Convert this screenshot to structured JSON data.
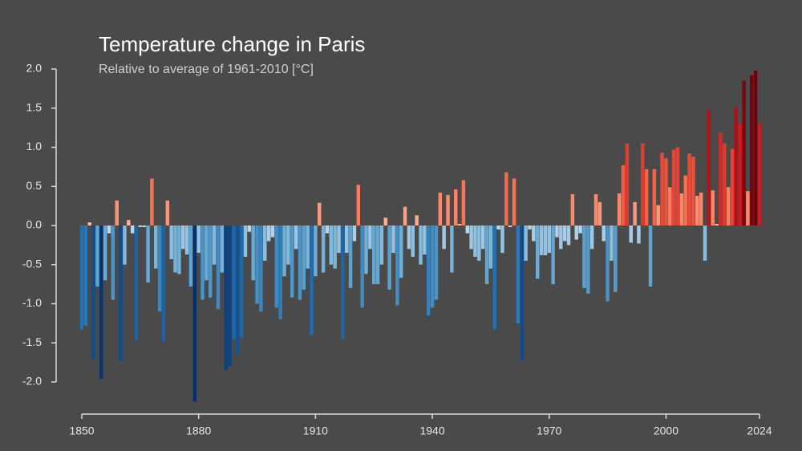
{
  "chart_data": {
    "type": "bar",
    "title": "Temperature change in Paris",
    "subtitle": "Relative to average of 1961-2010  [°C]",
    "x": [
      1850,
      1851,
      1852,
      1853,
      1854,
      1855,
      1856,
      1857,
      1858,
      1859,
      1860,
      1861,
      1862,
      1863,
      1864,
      1865,
      1866,
      1867,
      1868,
      1869,
      1870,
      1871,
      1872,
      1873,
      1874,
      1875,
      1876,
      1877,
      1878,
      1879,
      1880,
      1881,
      1882,
      1883,
      1884,
      1885,
      1886,
      1887,
      1888,
      1889,
      1890,
      1891,
      1892,
      1893,
      1894,
      1895,
      1896,
      1897,
      1898,
      1899,
      1900,
      1901,
      1902,
      1903,
      1904,
      1905,
      1906,
      1907,
      1908,
      1909,
      1910,
      1911,
      1912,
      1913,
      1914,
      1915,
      1916,
      1917,
      1918,
      1919,
      1920,
      1921,
      1922,
      1923,
      1924,
      1925,
      1926,
      1927,
      1928,
      1929,
      1930,
      1931,
      1932,
      1933,
      1934,
      1935,
      1936,
      1937,
      1938,
      1939,
      1940,
      1941,
      1942,
      1943,
      1944,
      1945,
      1946,
      1947,
      1948,
      1949,
      1950,
      1951,
      1952,
      1953,
      1954,
      1955,
      1956,
      1957,
      1958,
      1959,
      1960,
      1961,
      1962,
      1963,
      1964,
      1965,
      1966,
      1967,
      1968,
      1969,
      1970,
      1971,
      1972,
      1973,
      1974,
      1975,
      1976,
      1977,
      1978,
      1979,
      1980,
      1981,
      1982,
      1983,
      1984,
      1985,
      1986,
      1987,
      1988,
      1989,
      1990,
      1991,
      1992,
      1993,
      1994,
      1995,
      1996,
      1997,
      1998,
      1999,
      2000,
      2001,
      2002,
      2003,
      2004,
      2005,
      2006,
      2007,
      2008,
      2009,
      2010,
      2011,
      2012,
      2013,
      2014,
      2015,
      2016,
      2017,
      2018,
      2019,
      2020,
      2021,
      2022,
      2023,
      2024
    ],
    "values": [
      -1.33,
      -1.28,
      0.04,
      -1.7,
      -0.78,
      -1.96,
      -0.7,
      -0.1,
      -0.95,
      0.32,
      -1.73,
      -0.5,
      0.07,
      -0.1,
      -1.47,
      -0.02,
      -0.02,
      -0.73,
      0.6,
      -0.55,
      -1.1,
      -1.48,
      0.32,
      -0.43,
      -0.6,
      -0.62,
      -0.3,
      -0.37,
      -0.78,
      -2.25,
      -0.35,
      -0.95,
      -0.7,
      -0.92,
      -0.5,
      -1.07,
      -0.6,
      -1.85,
      -1.8,
      -1.45,
      -1.65,
      -1.43,
      -0.4,
      -0.08,
      -0.7,
      -1.0,
      -1.1,
      -0.45,
      -0.2,
      -0.15,
      -1.05,
      -1.2,
      -0.65,
      -0.5,
      -0.92,
      -0.3,
      -0.95,
      -0.82,
      -0.55,
      -1.4,
      -0.65,
      0.29,
      -0.6,
      -0.1,
      -0.5,
      -0.55,
      -0.35,
      -1.45,
      -0.35,
      -0.8,
      -0.2,
      0.52,
      -1.05,
      -0.62,
      -0.3,
      -0.75,
      -0.75,
      -0.5,
      0.1,
      -0.82,
      -0.35,
      -1.02,
      -0.67,
      0.24,
      -0.3,
      -0.4,
      0.13,
      -0.5,
      -0.37,
      -1.15,
      -1.05,
      -0.95,
      0.42,
      -0.3,
      0.39,
      -0.6,
      0.46,
      0.02,
      0.58,
      -0.1,
      -0.3,
      -0.4,
      -0.45,
      -0.3,
      -0.75,
      -0.55,
      -1.33,
      -0.05,
      -0.35,
      0.68,
      -0.02,
      0.6,
      -1.25,
      -1.72,
      -0.45,
      -0.05,
      -0.2,
      -0.68,
      -0.38,
      -0.38,
      -0.35,
      -0.75,
      -0.15,
      -0.3,
      -0.2,
      -0.25,
      0.4,
      -0.18,
      -0.1,
      -0.8,
      -0.87,
      -0.3,
      0.4,
      0.3,
      -0.2,
      -0.97,
      -0.45,
      -0.85,
      0.41,
      0.77,
      1.05,
      -0.22,
      0.3,
      -0.23,
      1.05,
      0.72,
      -0.78,
      0.72,
      0.26,
      0.93,
      0.86,
      0.49,
      0.97,
      1.0,
      0.41,
      0.64,
      0.92,
      0.88,
      0.38,
      0.42,
      -0.45,
      1.48,
      0.45,
      0.02,
      1.19,
      1.05,
      0.49,
      0.98,
      1.52,
      1.3,
      1.85,
      0.44,
      1.92,
      1.98,
      1.3
    ],
    "xlim": [
      1850,
      2024
    ],
    "xticks": [
      1850,
      1880,
      1910,
      1940,
      1970,
      2000,
      2024
    ],
    "ylim": [
      -2.0,
      2.0
    ],
    "yticks": [
      {
        "value": 2.0,
        "label": "2.0"
      },
      {
        "value": 1.5,
        "label": "1.5"
      },
      {
        "value": 1.0,
        "label": "1.0"
      },
      {
        "value": 0.5,
        "label": "0.5"
      },
      {
        "value": 0.0,
        "label": "0.0"
      },
      {
        "value": -0.5,
        "label": "-0.5"
      },
      {
        "value": -1.0,
        "label": "-1.0"
      },
      {
        "value": -1.5,
        "label": "-1.5"
      },
      {
        "value": -2.0,
        "label": "-2.0"
      }
    ],
    "grid": false
  }
}
